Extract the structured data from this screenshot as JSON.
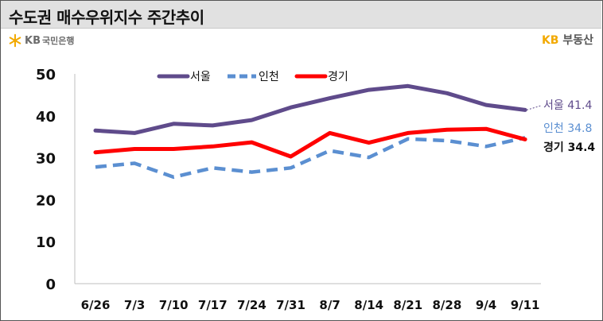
{
  "title": "수도권 매수우위지수 주간추이",
  "logo_left": {
    "kb": "KB",
    "bank": "국민은행",
    "icon": "kb-star-icon"
  },
  "logo_right": {
    "kb": "KB",
    "name": "부동산"
  },
  "chart_data": {
    "type": "line",
    "categories": [
      "6/26",
      "7/3",
      "7/10",
      "7/17",
      "7/24",
      "7/31",
      "8/7",
      "8/14",
      "8/21",
      "8/28",
      "9/4",
      "9/11"
    ],
    "ylim": [
      0,
      50
    ],
    "yticks": [
      0,
      10,
      20,
      30,
      40,
      50
    ],
    "grid": false,
    "legend_position": "top-center",
    "series": [
      {
        "name": "서울",
        "color": "#5f4b8b",
        "dash": "solid",
        "values": [
          36.5,
          35.9,
          38.1,
          37.7,
          39.0,
          42.0,
          44.2,
          46.2,
          47.1,
          45.4,
          42.6,
          41.4
        ],
        "end_label": "서울",
        "end_value": "41.4"
      },
      {
        "name": "인천",
        "color": "#5b8fd1",
        "dash": "dashed",
        "values": [
          27.8,
          28.7,
          25.4,
          27.6,
          26.6,
          27.6,
          31.7,
          30.1,
          34.5,
          34.1,
          32.7,
          34.8
        ],
        "end_label": "인천",
        "end_value": "34.8"
      },
      {
        "name": "경기",
        "color": "#ff0000",
        "dash": "solid",
        "values": [
          31.3,
          32.1,
          32.1,
          32.7,
          33.7,
          30.3,
          35.9,
          33.6,
          35.9,
          36.7,
          36.9,
          34.4
        ],
        "end_label": "경기",
        "end_value": "34.4"
      }
    ]
  }
}
